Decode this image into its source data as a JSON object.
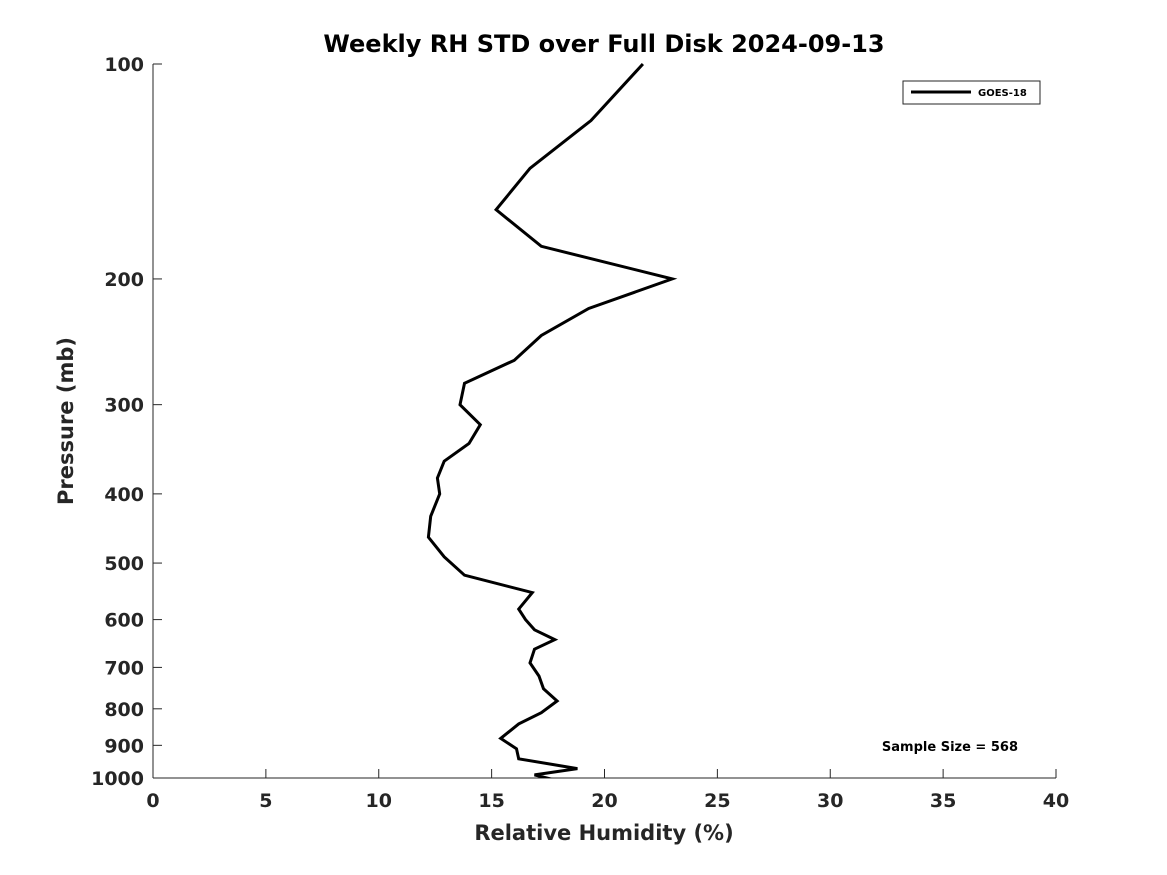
{
  "chart_data": {
    "type": "line",
    "title": "Weekly RH STD over Full Disk 2024-09-13",
    "xlabel": "Relative Humidity (%)",
    "ylabel": "Pressure (mb)",
    "xlim": [
      0,
      40
    ],
    "ylim": [
      100,
      1000
    ],
    "y_scale": "log",
    "y_reversed": true,
    "grid": false,
    "x_ticks": [
      0,
      5,
      10,
      15,
      20,
      25,
      30,
      35,
      40
    ],
    "x_tick_labels": [
      "0",
      "5",
      "10",
      "15",
      "20",
      "25",
      "30",
      "35",
      "40"
    ],
    "y_ticks": [
      100,
      200,
      300,
      400,
      500,
      600,
      700,
      800,
      900,
      1000
    ],
    "y_tick_labels": [
      "100",
      "200",
      "300",
      "400",
      "500",
      "600",
      "700",
      "800",
      "900",
      "1000"
    ],
    "legend_position": "top-right",
    "series": [
      {
        "name": "GOES-18",
        "color": "#000000",
        "x": [
          21.7,
          19.4,
          16.7,
          15.2,
          17.2,
          23.0,
          19.3,
          17.2,
          16.0,
          13.8,
          13.6,
          14.5,
          14.0,
          12.9,
          12.6,
          12.7,
          12.3,
          12.2,
          12.9,
          13.8,
          16.8,
          16.2,
          16.5,
          16.9,
          17.8,
          16.9,
          16.7,
          17.1,
          17.3,
          17.9,
          17.2,
          16.2,
          15.4,
          16.1,
          16.2,
          18.8,
          16.9,
          18.0
        ],
        "y": [
          100,
          120,
          140,
          160,
          180,
          200,
          220,
          240,
          260,
          280,
          300,
          320,
          340,
          360,
          380,
          400,
          430,
          460,
          490,
          520,
          550,
          580,
          600,
          620,
          640,
          660,
          690,
          720,
          750,
          780,
          810,
          840,
          880,
          910,
          940,
          970,
          990,
          1010
        ]
      }
    ],
    "annotations": [
      {
        "text": "Sample Size = 568",
        "position": "bottom-right"
      }
    ]
  }
}
